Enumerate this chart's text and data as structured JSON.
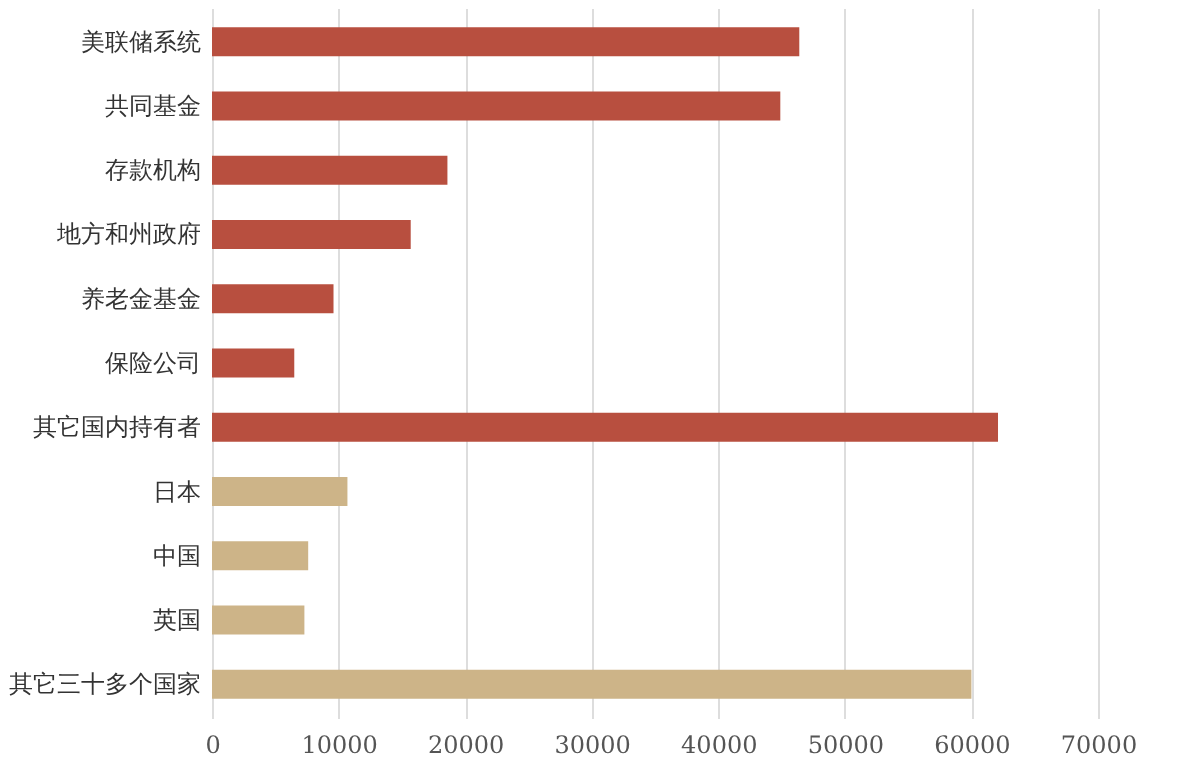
{
  "chart_data": {
    "type": "bar",
    "orientation": "horizontal",
    "categories": [
      "美联储系统",
      "共同基金",
      "存款机构",
      "地方和州政府",
      "养老金基金",
      "保险公司",
      "其它国内持有者",
      "日本",
      "中国",
      "英国",
      "其它三十多个国家"
    ],
    "values": [
      46400,
      44900,
      18600,
      15700,
      9600,
      6500,
      62100,
      10700,
      7600,
      7300,
      60000
    ],
    "colors": [
      "#b84f3f",
      "#b84f3f",
      "#b84f3f",
      "#b84f3f",
      "#b84f3f",
      "#b84f3f",
      "#b84f3f",
      "#cdb488",
      "#cdb488",
      "#cdb488",
      "#cdb488"
    ],
    "xlim": [
      0,
      70000
    ],
    "xticks": [
      0,
      10000,
      20000,
      30000,
      40000,
      50000,
      60000,
      70000
    ],
    "grid": "x"
  }
}
